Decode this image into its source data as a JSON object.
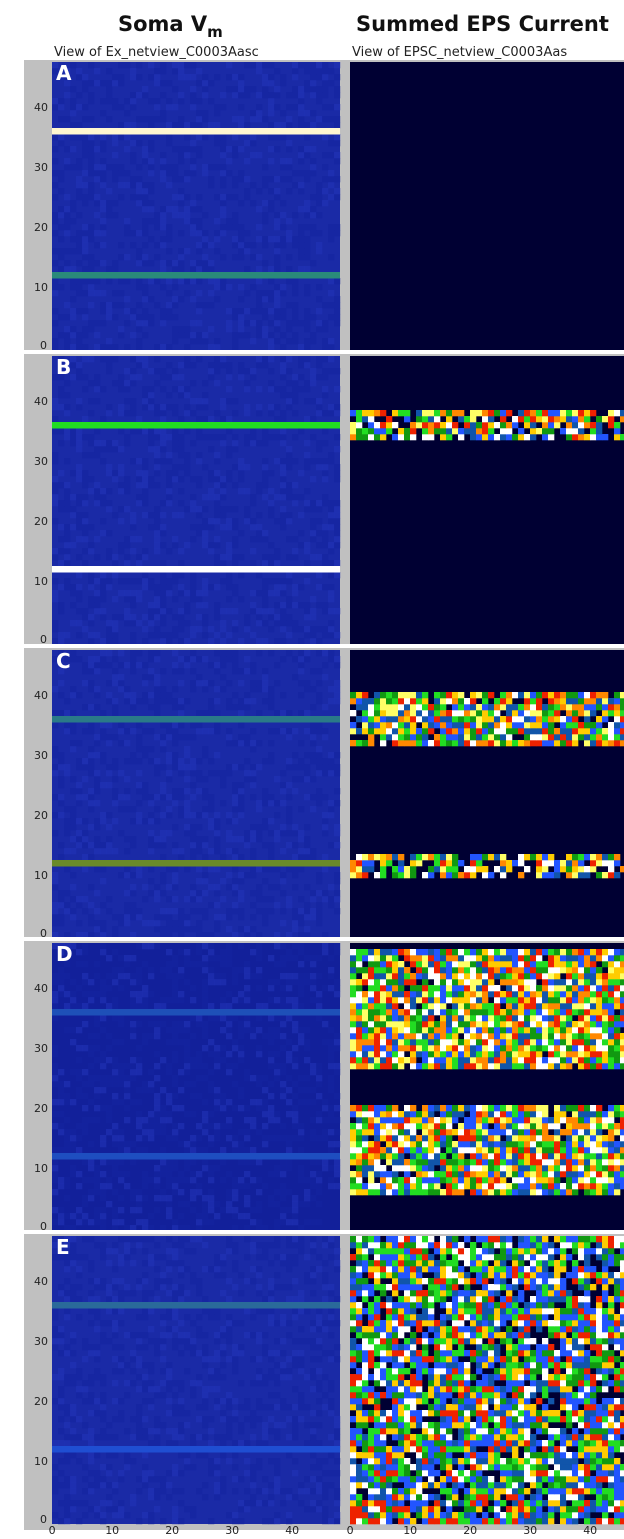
{
  "chart_data": [
    {
      "type": "heatmap",
      "title": "Soma V",
      "title_subscript": "m",
      "view_label": "View of Ex_netview_C0003Aasc",
      "grid_size": [
        48,
        48
      ],
      "xlim": [
        0,
        47
      ],
      "ylim": [
        0,
        47
      ],
      "x_ticks": [
        "0",
        "10",
        "20",
        "30",
        "40"
      ],
      "y_ticks": [
        "0",
        "10",
        "20",
        "30",
        "40"
      ],
      "panels": [
        {
          "label": "A",
          "background": "#1a2aa6",
          "stripes": [
            {
              "row": 36,
              "color": "#fff7d0"
            },
            {
              "row": 12,
              "color": "#2a8a7a"
            }
          ]
        },
        {
          "label": "B",
          "background": "#1a2aa6",
          "stripes": [
            {
              "row": 36,
              "color": "#22dd22"
            },
            {
              "row": 12,
              "color": "#ffffff"
            }
          ]
        },
        {
          "label": "C",
          "background": "#1a2aa6",
          "stripes": [
            {
              "row": 36,
              "color": "#2a7a88"
            },
            {
              "row": 12,
              "color": "#6a8a2a"
            }
          ]
        },
        {
          "label": "D",
          "background": "#12209a",
          "stripes": [
            {
              "row": 36,
              "color": "#1e50b8"
            },
            {
              "row": 12,
              "color": "#1e4ec0"
            }
          ]
        },
        {
          "label": "E",
          "background": "#1a2aa6",
          "stripes": [
            {
              "row": 36,
              "color": "#2a6a9a"
            },
            {
              "row": 12,
              "color": "#1f4ed2"
            }
          ]
        }
      ]
    },
    {
      "type": "heatmap",
      "title": "Summed EPS Current",
      "view_label": "View of EPSC_netview_C0003Aas",
      "grid_size": [
        48,
        48
      ],
      "xlim": [
        0,
        47
      ],
      "ylim": [
        0,
        47
      ],
      "x_ticks": [
        "0",
        "10",
        "20",
        "30",
        "40"
      ],
      "panels": [
        {
          "label": "A",
          "background": "#000033",
          "bands": []
        },
        {
          "label": "B",
          "background": "#000033",
          "bands": [
            {
              "from_row": 34,
              "to_row": 38,
              "density": 0.8
            }
          ]
        },
        {
          "label": "C",
          "background": "#000033",
          "bands": [
            {
              "from_row": 32,
              "to_row": 40,
              "density": 0.9
            },
            {
              "from_row": 10,
              "to_row": 13,
              "density": 0.75
            }
          ]
        },
        {
          "label": "D",
          "background": "#000033",
          "bands": [
            {
              "from_row": 27,
              "to_row": 46,
              "density": 0.97
            },
            {
              "from_row": 6,
              "to_row": 20,
              "density": 0.95
            }
          ]
        },
        {
          "label": "E",
          "background": "#000033",
          "bands": [
            {
              "from_row": 0,
              "to_row": 47,
              "density": 0.85
            }
          ]
        }
      ]
    }
  ],
  "colors": {
    "frame": "#c0c0c0",
    "hot_palette": [
      "#ffffff",
      "#ffff66",
      "#ffcc00",
      "#ff8800",
      "#ee2200",
      "#22dd22",
      "#119911",
      "#2255ff",
      "#1155aa"
    ],
    "cool_palette": [
      "#2255ff",
      "#22dd22",
      "#1155aa",
      "#119911",
      "#2255ff",
      "#ffffff",
      "#ffcc00",
      "#ee2200"
    ]
  }
}
